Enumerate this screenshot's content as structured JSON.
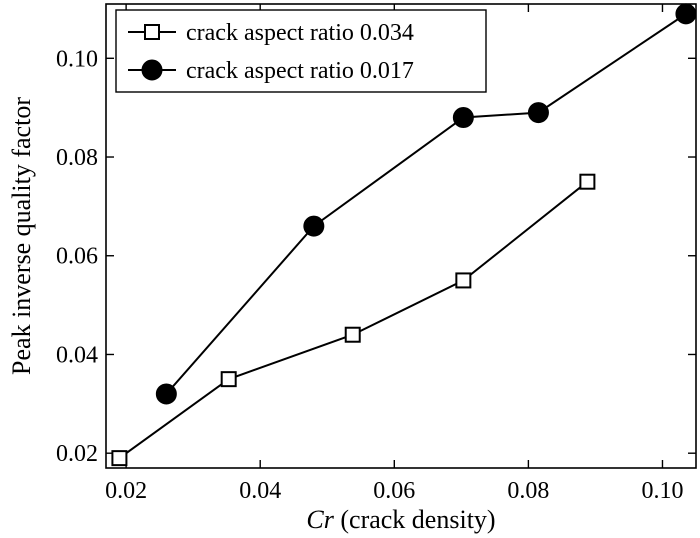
{
  "chart_data": {
    "type": "line",
    "xlabel_italic": "Cr",
    "xlabel_rest": " (crack density)",
    "ylabel": "Peak inverse quality factor",
    "xlim": [
      0.017,
      0.105
    ],
    "ylim": [
      0.017,
      0.111
    ],
    "xticks": [
      0.02,
      0.04,
      0.06,
      0.08,
      0.1
    ],
    "xtick_labels": [
      "0.02",
      "0.04",
      "0.06",
      "0.08",
      "0.10"
    ],
    "yticks": [
      0.02,
      0.04,
      0.06,
      0.08,
      0.1
    ],
    "ytick_labels": [
      "0.02",
      "0.04",
      "0.06",
      "0.08",
      "0.10"
    ],
    "legend_position": "top-left",
    "grid": false,
    "series": [
      {
        "name": "crack aspect ratio 0.034",
        "marker": "open-square",
        "color": "#000000",
        "x": [
          0.019,
          0.0353,
          0.0538,
          0.0703,
          0.0888
        ],
        "y": [
          0.019,
          0.035,
          0.044,
          0.055,
          0.075
        ]
      },
      {
        "name": "crack aspect ratio 0.017",
        "marker": "filled-circle",
        "color": "#000000",
        "x": [
          0.026,
          0.048,
          0.0703,
          0.0815,
          0.1035
        ],
        "y": [
          0.032,
          0.066,
          0.088,
          0.089,
          0.109
        ]
      }
    ]
  }
}
